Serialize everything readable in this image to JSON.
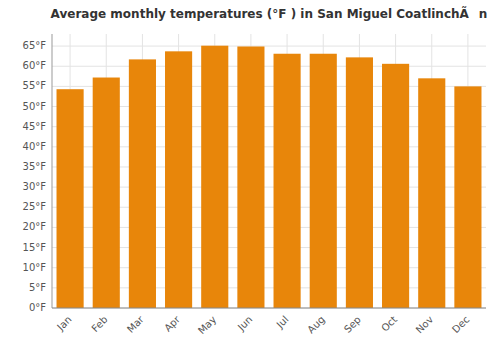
{
  "chart_data": {
    "type": "bar",
    "title": "Average monthly temperatures (°F ) in San Miguel CoatlinchÃn",
    "categories": [
      "Jan",
      "Feb",
      "Mar",
      "Apr",
      "May",
      "Jun",
      "Jul",
      "Aug",
      "Sep",
      "Oct",
      "Nov",
      "Dec"
    ],
    "values": [
      54.3,
      57.2,
      61.7,
      63.7,
      65.1,
      64.9,
      63.1,
      63.1,
      62.2,
      60.6,
      57.0,
      55.0
    ],
    "color": "#E8860A",
    "ylim": [
      0,
      68
    ],
    "yticks": [
      {
        "value": 0,
        "label": "0°F"
      },
      {
        "value": 5,
        "label": "5°F"
      },
      {
        "value": 10,
        "label": "10°F"
      },
      {
        "value": 15,
        "label": "15°F"
      },
      {
        "value": 20,
        "label": "20°F"
      },
      {
        "value": 25,
        "label": "25°F"
      },
      {
        "value": 30,
        "label": "30°F"
      },
      {
        "value": 35,
        "label": "35°F"
      },
      {
        "value": 40,
        "label": "40°F"
      },
      {
        "value": 45,
        "label": "45°F"
      },
      {
        "value": 50,
        "label": "50°F"
      },
      {
        "value": 55,
        "label": "55°F"
      },
      {
        "value": 60,
        "label": "60°F"
      },
      {
        "value": 65,
        "label": "65°F"
      }
    ],
    "grid": true
  }
}
